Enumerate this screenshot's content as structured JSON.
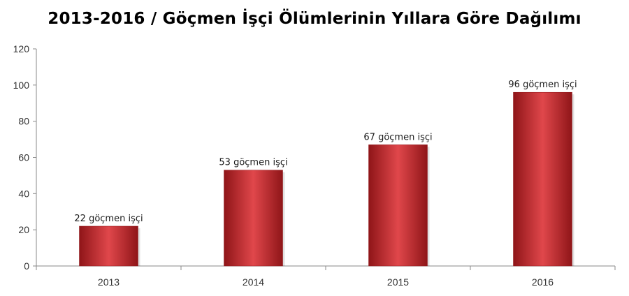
{
  "chart_data": {
    "type": "bar",
    "title": "2013-2016 / Göçmen İşçi Ölümlerinin Yıllara Göre Dağılımı",
    "categories": [
      "2013",
      "2014",
      "2015",
      "2016"
    ],
    "values": [
      22,
      53,
      67,
      96
    ],
    "data_labels": [
      "22 göçmen işçi",
      "53 göçmen işçi",
      "67 göçmen işçi",
      "96 göçmen işçi"
    ],
    "xlabel": "",
    "ylabel": "",
    "ylim": [
      0,
      120
    ],
    "yticks": [
      0,
      20,
      40,
      60,
      80,
      100,
      120
    ],
    "grid": false,
    "legend": "none",
    "colors": {
      "bar": "#c0282d",
      "bar_light": "#e0474b",
      "bar_dark": "#8f1518",
      "axis": "#8a8a8a"
    }
  }
}
